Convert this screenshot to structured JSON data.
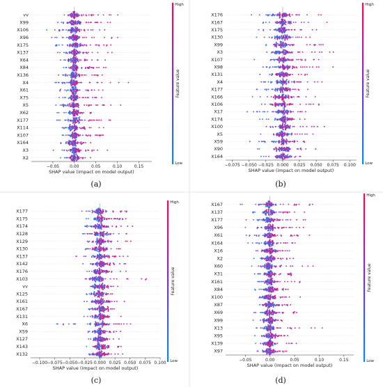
{
  "colors": {
    "high": "#ff0052",
    "low": "#008bfb",
    "zero_line": "#999999",
    "grid_row": "#cccccc"
  },
  "chart_data": [
    {
      "type": "scatter",
      "subtype": "shap-beeswarm",
      "tag": "(a)",
      "xlabel": "SHAP value (impact on model output)",
      "xlim": [
        -0.1,
        0.18
      ],
      "xticks": [
        -0.05,
        0.0,
        0.05,
        0.1,
        0.15
      ],
      "xtick_labels": [
        "−0.05",
        "0.00",
        "0.05",
        "0.10",
        "0.15"
      ],
      "colorbar": {
        "label": "Feature value",
        "high": "High",
        "low": "Low"
      },
      "features": [
        "vv",
        "X99",
        "X106",
        "X96",
        "X175",
        "X137",
        "X64",
        "X84",
        "X136",
        "X4",
        "X61",
        "X75",
        "X5",
        "X62",
        "X177",
        "X114",
        "X107",
        "X164",
        "X3",
        "X2"
      ],
      "spread_right": [
        0.12,
        0.1,
        0.1,
        0.13,
        0.12,
        0.11,
        0.1,
        0.09,
        0.08,
        0.16,
        0.1,
        0.08,
        0.15,
        0.09,
        0.1,
        0.09,
        0.11,
        0.06,
        0.09,
        0.06
      ],
      "spread_left": [
        0.06,
        0.06,
        0.07,
        0.06,
        0.06,
        0.06,
        0.05,
        0.05,
        0.05,
        0.05,
        0.05,
        0.05,
        0.06,
        0.05,
        0.05,
        0.05,
        0.05,
        0.05,
        0.06,
        0.05
      ]
    },
    {
      "type": "scatter",
      "subtype": "shap-beeswarm",
      "tag": "(b)",
      "xlabel": "SHAP value (impact on model output)",
      "xlim": [
        -0.085,
        0.11
      ],
      "xticks": [
        -0.075,
        -0.05,
        -0.025,
        0.0,
        0.025,
        0.05,
        0.075,
        0.1
      ],
      "xtick_labels": [
        "−0.075",
        "−0.050",
        "−0.025",
        "0.000",
        "0.025",
        "0.050",
        "0.075",
        "0.100"
      ],
      "colorbar": {
        "label": "Feature value",
        "high": "High",
        "low": "Low"
      },
      "features": [
        "X176",
        "X167",
        "X175",
        "X130",
        "X99",
        "X3",
        "X107",
        "X98",
        "X131",
        "X4",
        "X177",
        "X166",
        "X106",
        "X17",
        "X174",
        "X100",
        "X5",
        "X59",
        "X90",
        "X164"
      ],
      "spread_right": [
        0.075,
        0.072,
        0.06,
        0.055,
        0.085,
        0.09,
        0.065,
        0.085,
        0.065,
        0.07,
        0.06,
        0.055,
        0.08,
        0.05,
        0.055,
        0.095,
        0.06,
        0.05,
        0.055,
        0.06
      ],
      "spread_left": [
        0.05,
        0.05,
        0.045,
        0.045,
        0.05,
        0.045,
        0.045,
        0.04,
        0.04,
        0.045,
        0.05,
        0.06,
        0.05,
        0.06,
        0.055,
        0.06,
        0.05,
        0.06,
        0.04,
        0.045
      ]
    },
    {
      "type": "scatter",
      "subtype": "shap-beeswarm",
      "tag": "(c)",
      "xlabel": "SHAP value (impact on model output)",
      "xlim": [
        -0.115,
        0.1
      ],
      "xticks": [
        -0.1,
        -0.075,
        -0.05,
        -0.025,
        0.0,
        0.025,
        0.05,
        0.075,
        0.1
      ],
      "xtick_labels": [
        "−0.100",
        "−0.075",
        "−0.050",
        "−0.025",
        "0.000",
        "0.025",
        "0.050",
        "0.075",
        "0.100"
      ],
      "colorbar": {
        "label": "Feature value",
        "high": "High",
        "low": "Low"
      },
      "features": [
        "X177",
        "X175",
        "X174",
        "X128",
        "X129",
        "X130",
        "X137",
        "X142",
        "X176",
        "X103",
        "vv",
        "X125",
        "X161",
        "X167",
        "X131",
        "X6",
        "X59",
        "X127",
        "X143",
        "X132"
      ],
      "spread_right": [
        0.07,
        0.065,
        0.065,
        0.06,
        0.06,
        0.055,
        0.06,
        0.055,
        0.055,
        0.09,
        0.045,
        0.05,
        0.05,
        0.045,
        0.045,
        0.075,
        0.05,
        0.045,
        0.045,
        0.04
      ],
      "spread_left": [
        0.04,
        0.04,
        0.045,
        0.035,
        0.035,
        0.035,
        0.045,
        0.035,
        0.035,
        0.03,
        0.03,
        0.035,
        0.03,
        0.03,
        0.04,
        0.1,
        0.03,
        0.03,
        0.03,
        0.03
      ]
    },
    {
      "type": "scatter",
      "subtype": "shap-beeswarm",
      "tag": "(d)",
      "xlabel": "SHAP value (impact on model output)",
      "xlim": [
        -0.09,
        0.17
      ],
      "xticks": [
        -0.05,
        0.0,
        0.05,
        0.1,
        0.15
      ],
      "xtick_labels": [
        "−0.05",
        "0.00",
        "0.05",
        "0.10",
        "0.15"
      ],
      "colorbar": {
        "label": "Feature value",
        "high": "High",
        "low": "Low"
      },
      "features": [
        "X167",
        "X137",
        "X177",
        "X96",
        "X61",
        "X164",
        "X16",
        "X2",
        "X60",
        "X31",
        "X161",
        "X84",
        "X100",
        "X87",
        "X69",
        "X99",
        "X13",
        "X95",
        "X139",
        "X97"
      ],
      "spread_right": [
        0.13,
        0.09,
        0.075,
        0.08,
        0.1,
        0.07,
        0.08,
        0.07,
        0.11,
        0.075,
        0.08,
        0.06,
        0.09,
        0.065,
        0.065,
        0.06,
        0.15,
        0.055,
        0.06,
        0.05
      ],
      "spread_left": [
        0.08,
        0.06,
        0.06,
        0.06,
        0.06,
        0.05,
        0.04,
        0.04,
        0.04,
        0.05,
        0.04,
        0.04,
        0.04,
        0.04,
        0.04,
        0.04,
        0.04,
        0.04,
        0.04,
        0.04
      ]
    }
  ]
}
